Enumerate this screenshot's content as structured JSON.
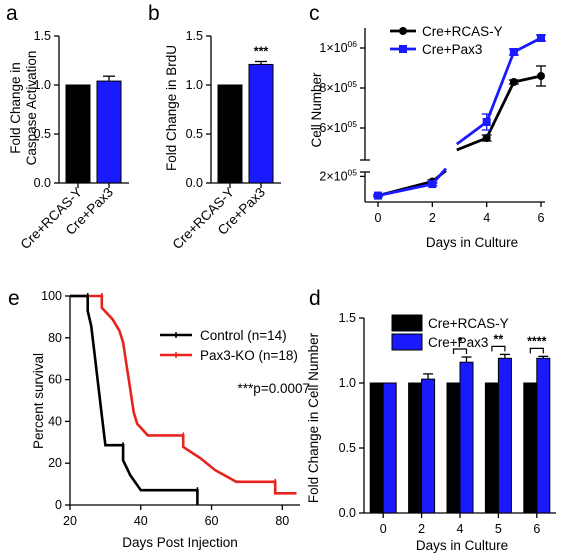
{
  "panel_letters": {
    "a": "a",
    "b": "b",
    "c": "c",
    "d": "d",
    "e": "e"
  },
  "colors": {
    "black": "#000000",
    "blue": "#1a1aff",
    "red": "#e8231e"
  },
  "chart_data": [
    {
      "panel": "a",
      "type": "bar",
      "ylabel": "Fold Change in Caspase Activation",
      "ylabel_lines": [
        "Fold Change in",
        "Caspase Activation"
      ],
      "categories": [
        "Cre+RCAS-Y",
        "Cre+Pax3"
      ],
      "values": [
        1.0,
        1.04
      ],
      "errors": [
        0,
        0.05
      ],
      "colors": [
        "#000000",
        "#1a1aff"
      ],
      "ylim": [
        0,
        1.5
      ],
      "yticks": [
        "0.0",
        "0.5",
        "1.0",
        "1.5"
      ],
      "annotations": []
    },
    {
      "panel": "b",
      "type": "bar",
      "ylabel": "Fold Change in BrdU",
      "ylabel_lines": [
        "Fold Change in BrdU"
      ],
      "categories": [
        "Cre+RCAS-Y",
        "Cre+Pax3"
      ],
      "values": [
        1.0,
        1.21
      ],
      "errors": [
        0,
        0.03
      ],
      "colors": [
        "#000000",
        "#1a1aff"
      ],
      "ylim": [
        0,
        1.5
      ],
      "yticks": [
        "0.0",
        "0.5",
        "1.0",
        "1.5"
      ],
      "annotations": [
        "***"
      ]
    },
    {
      "panel": "c",
      "type": "line",
      "xlabel": "Days in Culture",
      "ylabel": "Cell Number",
      "xticks": [
        "0",
        "2",
        "4",
        "6"
      ],
      "yticks": [
        {
          "base": "2×10",
          "exp": "05",
          "value": 200000
        },
        {
          "base": "6×10",
          "exp": "05",
          "value": 600000
        },
        {
          "base": "8×10",
          "exp": "05",
          "value": 800000
        },
        {
          "base": "1×10",
          "exp": "06",
          "value": 1000000
        }
      ],
      "y_axis_break": true,
      "x_axis_break": true,
      "series": [
        {
          "name": "Cre+RCAS-Y",
          "color": "#000000",
          "marker": "circle",
          "x": [
            0,
            2,
            4,
            5,
            6
          ],
          "y": [
            50000,
            160000,
            550000,
            830000,
            860000
          ],
          "err": [
            8000,
            12000,
            15000,
            10000,
            50000
          ]
        },
        {
          "name": "Cre+Pax3",
          "color": "#1a1aff",
          "marker": "square",
          "x": [
            0,
            2,
            4,
            5,
            6
          ],
          "y": [
            50000,
            140000,
            630000,
            980000,
            1050000
          ],
          "err": [
            8000,
            12000,
            40000,
            15000,
            15000
          ]
        }
      ]
    },
    {
      "panel": "d",
      "type": "bar",
      "xlabel": "Days in Culture",
      "ylabel": "Fold Change in Cell Number",
      "categories": [
        "0",
        "2",
        "4",
        "5",
        "6"
      ],
      "ylim": [
        0,
        1.5
      ],
      "yticks": [
        "0.0",
        "0.5",
        "1.0",
        "1.5"
      ],
      "series": [
        {
          "name": "Cre+RCAS-Y",
          "color": "#000000",
          "values": [
            1.0,
            1.0,
            1.0,
            1.0,
            1.0
          ],
          "errors": [
            0,
            0,
            0,
            0,
            0
          ]
        },
        {
          "name": "Cre+Pax3",
          "color": "#1a1aff",
          "values": [
            1.0,
            1.03,
            1.16,
            1.19,
            1.19
          ],
          "errors": [
            0,
            0.04,
            0.04,
            0.03,
            0.015
          ]
        }
      ],
      "significance": [
        {
          "category": "4",
          "label": "*"
        },
        {
          "category": "5",
          "label": "**"
        },
        {
          "category": "6",
          "label": "****"
        }
      ]
    },
    {
      "panel": "e",
      "type": "line",
      "subtype": "kaplan-meier",
      "xlabel": "Days Post Injection",
      "ylabel": "Percent survival",
      "xlim": [
        20,
        85
      ],
      "ylim": [
        0,
        100
      ],
      "xticks": [
        "20",
        "40",
        "60",
        "80"
      ],
      "yticks": [
        "0",
        "20",
        "40",
        "60",
        "80",
        "100"
      ],
      "annotation": "***p=0.0007",
      "series": [
        {
          "name": "Control (n=14)",
          "color": "#000000",
          "steps": [
            [
              20,
              100
            ],
            [
              25,
              100
            ],
            [
              25,
              92.9
            ],
            [
              26,
              85.7
            ],
            [
              27,
              71.4
            ],
            [
              28,
              57.1
            ],
            [
              29,
              42.9
            ],
            [
              30,
              28.6
            ],
            [
              35,
              28.6
            ],
            [
              35,
              21.4
            ],
            [
              37,
              14.3
            ],
            [
              40,
              7.1
            ],
            [
              56,
              7.1
            ],
            [
              56,
              0
            ]
          ],
          "end_x": 56
        },
        {
          "name": "Pax3-KO (n=18)",
          "color": "#e8231e",
          "steps": [
            [
              20,
              100
            ],
            [
              29,
              100
            ],
            [
              29,
              94.4
            ],
            [
              32,
              88.9
            ],
            [
              34,
              83.3
            ],
            [
              35,
              77.8
            ],
            [
              36,
              66.7
            ],
            [
              37,
              55.6
            ],
            [
              38,
              44.4
            ],
            [
              39,
              38.9
            ],
            [
              42,
              33.3
            ],
            [
              52,
              33.3
            ],
            [
              52,
              27.8
            ],
            [
              57,
              22.2
            ],
            [
              61,
              16.7
            ],
            [
              67,
              11.1
            ],
            [
              78,
              11.1
            ],
            [
              78,
              5.6
            ],
            [
              84,
              5.6
            ]
          ],
          "end_x": 84
        }
      ]
    }
  ]
}
